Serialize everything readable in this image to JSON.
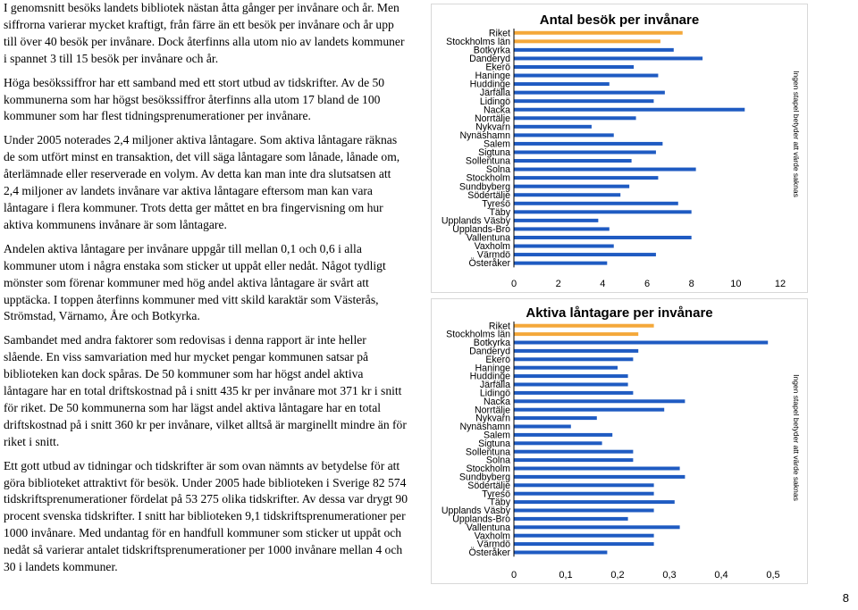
{
  "text": {
    "p1": "I genomsnitt besöks landets bibliotek nästan åtta gånger per invånare och år. Men siffrorna varierar mycket kraftigt, från färre än ett besök per invånare och år upp till över 40 besök per invånare. Dock återfinns alla utom nio av landets kommuner i spannet 3 till 15 besök per invånare och år.",
    "p2": "Höga besökssiffror har ett samband med ett stort utbud av tidskrifter. Av de 50 kommunerna som har högst besökssiffror återfinns alla utom 17 bland de 100 kommuner som har flest tidningsprenumerationer per invånare.",
    "p3": "Under 2005 noterades 2,4 miljoner aktiva låntagare. Som aktiva låntagare räknas de som utfört minst en transaktion, det vill säga låntagare som lånade, lånade om, återlämnade eller reserverade en volym. Av detta kan man inte dra slutsatsen att 2,4 miljoner av landets invånare var aktiva låntagare eftersom man kan vara låntagare i flera kommuner. Trots detta ger måttet en bra fingervisning om hur aktiva kommunens invånare är som låntagare.",
    "p4": "Andelen aktiva låntagare per invånare uppgår till mellan 0,1 och 0,6 i alla kommuner utom i några enstaka som sticker ut uppåt eller nedåt. Något tydligt mönster som förenar kommuner med hög andel aktiva låntagare är svårt att upptäcka. I toppen återfinns kommuner med vitt skild karaktär som Västerås, Strömstad, Värnamo, Åre och Botkyrka.",
    "p5": "Sambandet med andra faktorer som redovisas i denna rapport är inte heller slående. En viss samvariation med hur mycket pengar kommunen satsar på biblioteken kan dock spåras. De 50 kommuner som har högst andel aktiva låntagare har en total driftskostnad på i snitt 435 kr per invånare mot 371 kr i snitt för riket. De 50 kommunerna som har lägst andel aktiva låntagare har en total driftskostnad på i snitt 360 kr per invånare, vilket alltså är marginellt mindre än för riket i snitt.",
    "p6": "Ett gott utbud av tidningar och tidskrifter är som ovan nämnts av betydelse för att göra biblioteket attraktivt för besök. Under 2005 hade biblioteken i Sverige 82 574 tidskriftsprenumerationer fördelat på 53 275 olika tidskrifter. Av dessa var drygt 90 procent svenska tidskrifter. I snitt har biblioteken 9,1 tidskriftsprenumerationer per 1000 invånare. Med undantag för en handfull kommuner som sticker ut uppåt och nedåt så varierar antalet tidskriftsprenumerationer per 1000 invånare mellan 4 och 30 i landets kommuner."
  },
  "page_number": "8",
  "colors": {
    "highlight": "#F4A83A",
    "municipality": "#1F5BC2"
  },
  "chart_data": [
    {
      "type": "bar",
      "orientation": "horizontal",
      "title": "Antal besök per invånare",
      "side_note": "Ingen stapel betyder att värde saknas",
      "categories": [
        "Riket",
        "Stockholms län",
        "Botkyrka",
        "Danderyd",
        "Ekerö",
        "Haninge",
        "Huddinge",
        "Järfälla",
        "Lidingö",
        "Nacka",
        "Norrtälje",
        "Nykvarn",
        "Nynäshamn",
        "Salem",
        "Sigtuna",
        "Sollentuna",
        "Solna",
        "Stockholm",
        "Sundbyberg",
        "Södertälje",
        "Tyresö",
        "Täby",
        "Upplands Väsby",
        "Upplands-Bro",
        "Vallentuna",
        "Vaxholm",
        "Värmdö",
        "Österåker"
      ],
      "values": [
        7.6,
        6.6,
        7.2,
        8.5,
        5.4,
        6.5,
        4.3,
        6.8,
        6.3,
        10.4,
        5.5,
        3.5,
        4.5,
        6.7,
        6.4,
        5.3,
        8.2,
        6.5,
        5.2,
        4.8,
        7.4,
        8.0,
        3.8,
        4.3,
        8.0,
        4.5,
        6.4,
        4.2
      ],
      "highlight_categories": [
        "Riket",
        "Stockholms län"
      ],
      "xlim": [
        0,
        12
      ],
      "x_ticks": [
        "0",
        "2",
        "4",
        "6",
        "8",
        "10",
        "12"
      ],
      "grid": false
    },
    {
      "type": "bar",
      "orientation": "horizontal",
      "title": "Aktiva låntagare per invånare",
      "side_note": "Ingen stapel betyder att värde saknas",
      "categories": [
        "Riket",
        "Stockholms län",
        "Botkyrka",
        "Danderyd",
        "Ekerö",
        "Haninge",
        "Huddinge",
        "Järfälla",
        "Lidingö",
        "Nacka",
        "Norrtälje",
        "Nykvarn",
        "Nynäshamn",
        "Salem",
        "Sigtuna",
        "Sollentuna",
        "Solna",
        "Stockholm",
        "Sundbyberg",
        "Södertälje",
        "Tyresö",
        "Täby",
        "Upplands Väsby",
        "Upplands-Bro",
        "Vallentuna",
        "Vaxholm",
        "Värmdö",
        "Österåker"
      ],
      "values": [
        0.27,
        0.24,
        0.49,
        0.24,
        0.23,
        0.2,
        0.22,
        0.22,
        0.23,
        0.33,
        0.29,
        0.16,
        0.11,
        0.19,
        0.17,
        0.23,
        0.23,
        0.32,
        0.33,
        0.27,
        0.27,
        0.31,
        0.27,
        0.22,
        0.32,
        0.27,
        0.27,
        0.18
      ],
      "highlight_categories": [
        "Riket",
        "Stockholms län"
      ],
      "xlim": [
        0,
        0.5
      ],
      "x_ticks": [
        "0",
        "0,1",
        "0,2",
        "0,3",
        "0,4",
        "0,5"
      ],
      "grid": false
    }
  ]
}
